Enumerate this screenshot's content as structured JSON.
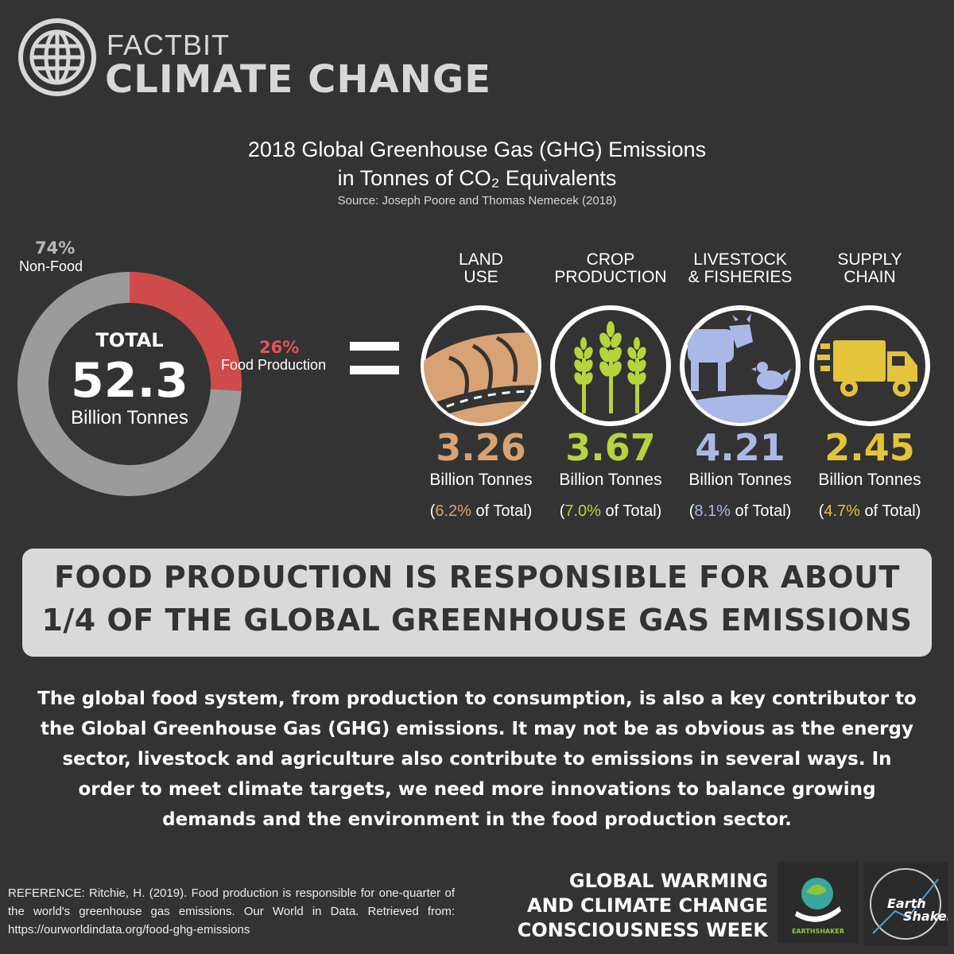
{
  "header": {
    "brand_line1": "FACTBIT",
    "brand_line2": "CLIMATE CHANGE",
    "icon": "globe-icon"
  },
  "chart_data": [
    {
      "type": "pie",
      "title": "2018 Global Greenhouse Gas (GHG) Emissions",
      "subtitle": "in Tonnes of CO₂ Equivalents",
      "source": "Source: Joseph Poore and Thomas Nemecek (2018)",
      "center_label": "TOTAL",
      "center_value": "52.3",
      "center_unit": "Billion Tonnes",
      "slices": [
        {
          "label": "Non-Food",
          "value": 74,
          "display": "74%",
          "color": "#9b9b9b"
        },
        {
          "label": "Food Production",
          "value": 26,
          "display": "26%",
          "color": "#cf4b4b"
        }
      ]
    },
    {
      "type": "table",
      "unit": "Billion Tonnes",
      "categories": [
        {
          "title_line1": "LAND",
          "title_line2": "USE",
          "value": "3.26",
          "share": "6.2%",
          "share_suffix": " of Total)",
          "color": "#d9a274",
          "icon": "field-icon"
        },
        {
          "title_line1": "CROP",
          "title_line2": "PRODUCTION",
          "value": "3.67",
          "share": "7.0%",
          "share_suffix": " of Total)",
          "color": "#b6d43c",
          "icon": "wheat-icon"
        },
        {
          "title_line1": "LIVESTOCK",
          "title_line2": "& FISHERIES",
          "value": "4.21",
          "share": "8.1%",
          "share_suffix": " of Total)",
          "color": "#a9b8e6",
          "icon": "cow-icon"
        },
        {
          "title_line1": "SUPPLY",
          "title_line2": "CHAIN",
          "value": "2.45",
          "share": "4.7%",
          "share_suffix": " of Total)",
          "color": "#e3c43a",
          "icon": "truck-icon"
        }
      ]
    }
  ],
  "banner": {
    "line1": "FOOD PRODUCTION  IS RESPONSIBLE FOR ABOUT",
    "line2": "1/4 OF THE GLOBAL GREENHOUSE GAS EMISSIONS"
  },
  "body_text": "The global food system, from production to consumption, is also a key contributor to the Global Greenhouse Gas (GHG) emissions. It may not be as obvious as the energy sector, livestock and agriculture also contribute to emissions in several ways. In order to meet climate targets, we need more innovations to balance growing demands and the environment in the food production sector.",
  "reference": "REFERENCE: Ritchie, H. (2019). Food production is responsible for one-quarter of the world's greenhouse gas emissions. Our World in Data. Retrieved from: https://ourworldindata.org/food-ghg-emissions",
  "footer": {
    "line1": "GLOBAL WARMING",
    "line2": "AND CLIMATE CHANGE",
    "line3": "CONSCIOUSNESS WEEK",
    "logo1_text": "EARTHSHAKER",
    "logo2_text_a": "Earth",
    "logo2_text_b": "Shaker"
  }
}
